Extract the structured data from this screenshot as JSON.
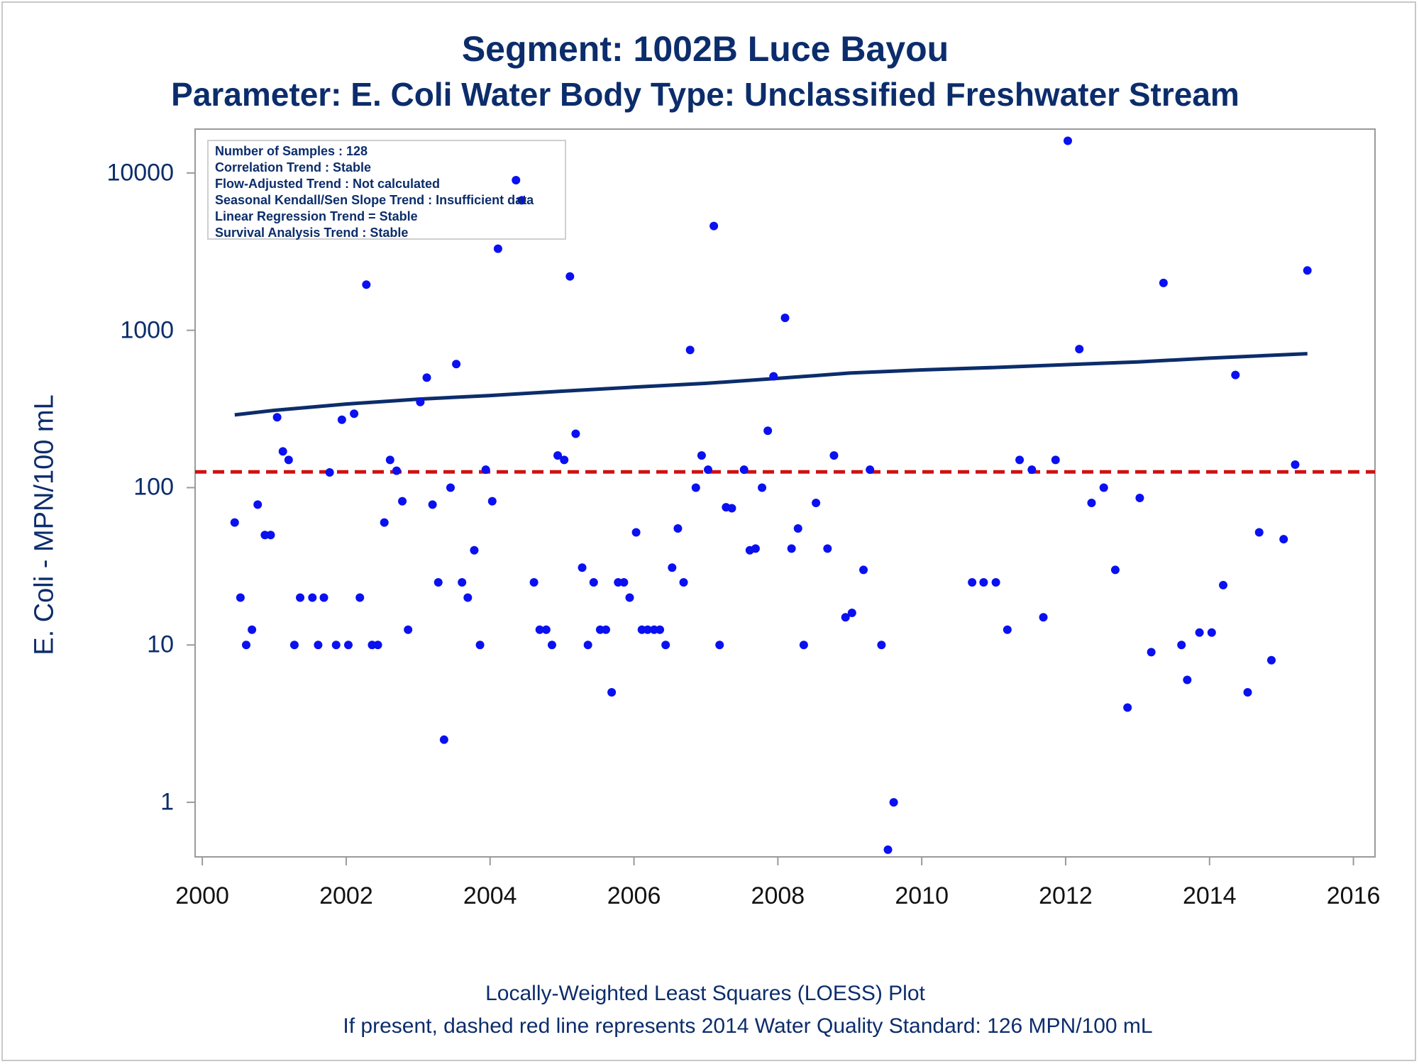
{
  "title": "Segment: 1002B  Luce Bayou",
  "subtitle": "Parameter: E. Coli   Water Body Type: Unclassified Freshwater Stream",
  "footnote1": "Locally-Weighted Least Squares (LOESS) Plot",
  "footnote2": "If present, dashed red line represents 2014 Water Quality Standard: 126 MPN/100 mL",
  "legend_lines": [
    "Number of Samples : 128",
    "Correlation Trend : Stable",
    "Flow-Adjusted Trend : Not calculated",
    "Seasonal Kendall/Sen Slope Trend : Insufficient data",
    "Linear Regression Trend = Stable",
    "Survival Analysis Trend : Stable"
  ],
  "colors": {
    "points": "#0a10f0",
    "loess": "#0c2d6b",
    "standard": "#d01010",
    "text": "#0c2d6b"
  },
  "chart_data": {
    "type": "scatter",
    "ylabel": "E. Coli - MPN/100 mL",
    "yscale": "log",
    "ylim": [
      0.45,
      19000
    ],
    "xlim": [
      1999.9,
      2016.3
    ],
    "yticks": [
      "1",
      "10",
      "100",
      "1000",
      "10000"
    ],
    "xticks": [
      "2000",
      "2002",
      "2004",
      "2006",
      "2008",
      "2010",
      "2012",
      "2014",
      "2016"
    ],
    "standard_line": 126,
    "points": [
      {
        "x": 2000.45,
        "y": 60
      },
      {
        "x": 2000.53,
        "y": 20
      },
      {
        "x": 2000.61,
        "y": 10
      },
      {
        "x": 2000.69,
        "y": 12.5
      },
      {
        "x": 2000.77,
        "y": 78
      },
      {
        "x": 2000.87,
        "y": 50
      },
      {
        "x": 2000.95,
        "y": 50
      },
      {
        "x": 2001.04,
        "y": 280
      },
      {
        "x": 2001.12,
        "y": 170
      },
      {
        "x": 2001.2,
        "y": 150
      },
      {
        "x": 2001.28,
        "y": 10
      },
      {
        "x": 2001.36,
        "y": 20
      },
      {
        "x": 2001.53,
        "y": 20
      },
      {
        "x": 2001.61,
        "y": 10
      },
      {
        "x": 2001.69,
        "y": 20
      },
      {
        "x": 2001.77,
        "y": 125
      },
      {
        "x": 2001.86,
        "y": 10
      },
      {
        "x": 2001.94,
        "y": 270
      },
      {
        "x": 2002.03,
        "y": 10
      },
      {
        "x": 2002.11,
        "y": 295
      },
      {
        "x": 2002.19,
        "y": 20
      },
      {
        "x": 2002.28,
        "y": 1950
      },
      {
        "x": 2002.36,
        "y": 10
      },
      {
        "x": 2002.44,
        "y": 10
      },
      {
        "x": 2002.53,
        "y": 60
      },
      {
        "x": 2002.61,
        "y": 150
      },
      {
        "x": 2002.7,
        "y": 128
      },
      {
        "x": 2002.78,
        "y": 82
      },
      {
        "x": 2002.86,
        "y": 12.5
      },
      {
        "x": 2003.03,
        "y": 350
      },
      {
        "x": 2003.12,
        "y": 500
      },
      {
        "x": 2003.2,
        "y": 78
      },
      {
        "x": 2003.28,
        "y": 25
      },
      {
        "x": 2003.36,
        "y": 2.5
      },
      {
        "x": 2003.45,
        "y": 100
      },
      {
        "x": 2003.53,
        "y": 610
      },
      {
        "x": 2003.61,
        "y": 25
      },
      {
        "x": 2003.69,
        "y": 20
      },
      {
        "x": 2003.78,
        "y": 40
      },
      {
        "x": 2003.86,
        "y": 10
      },
      {
        "x": 2003.94,
        "y": 130
      },
      {
        "x": 2004.03,
        "y": 82
      },
      {
        "x": 2004.11,
        "y": 3300
      },
      {
        "x": 2004.36,
        "y": 9000
      },
      {
        "x": 2004.44,
        "y": 6700
      },
      {
        "x": 2004.61,
        "y": 25
      },
      {
        "x": 2004.69,
        "y": 12.5
      },
      {
        "x": 2004.78,
        "y": 12.5
      },
      {
        "x": 2004.86,
        "y": 10
      },
      {
        "x": 2004.94,
        "y": 160
      },
      {
        "x": 2005.03,
        "y": 150
      },
      {
        "x": 2005.11,
        "y": 2200
      },
      {
        "x": 2005.19,
        "y": 220
      },
      {
        "x": 2005.28,
        "y": 31
      },
      {
        "x": 2005.36,
        "y": 10
      },
      {
        "x": 2005.44,
        "y": 25
      },
      {
        "x": 2005.53,
        "y": 12.5
      },
      {
        "x": 2005.61,
        "y": 12.5
      },
      {
        "x": 2005.69,
        "y": 5
      },
      {
        "x": 2005.78,
        "y": 25
      },
      {
        "x": 2005.86,
        "y": 25
      },
      {
        "x": 2005.94,
        "y": 20
      },
      {
        "x": 2006.03,
        "y": 52
      },
      {
        "x": 2006.11,
        "y": 12.5
      },
      {
        "x": 2006.19,
        "y": 12.5
      },
      {
        "x": 2006.28,
        "y": 12.5
      },
      {
        "x": 2006.36,
        "y": 12.5
      },
      {
        "x": 2006.44,
        "y": 10
      },
      {
        "x": 2006.53,
        "y": 31
      },
      {
        "x": 2006.61,
        "y": 55
      },
      {
        "x": 2006.69,
        "y": 25
      },
      {
        "x": 2006.78,
        "y": 750
      },
      {
        "x": 2006.86,
        "y": 100
      },
      {
        "x": 2006.94,
        "y": 160
      },
      {
        "x": 2007.03,
        "y": 130
      },
      {
        "x": 2007.11,
        "y": 4600
      },
      {
        "x": 2007.19,
        "y": 10
      },
      {
        "x": 2007.28,
        "y": 75
      },
      {
        "x": 2007.36,
        "y": 74
      },
      {
        "x": 2007.53,
        "y": 130
      },
      {
        "x": 2007.61,
        "y": 40
      },
      {
        "x": 2007.69,
        "y": 41
      },
      {
        "x": 2007.78,
        "y": 100
      },
      {
        "x": 2007.86,
        "y": 230
      },
      {
        "x": 2007.94,
        "y": 510
      },
      {
        "x": 2008.1,
        "y": 1200
      },
      {
        "x": 2008.19,
        "y": 41
      },
      {
        "x": 2008.28,
        "y": 55
      },
      {
        "x": 2008.36,
        "y": 10
      },
      {
        "x": 2008.53,
        "y": 80
      },
      {
        "x": 2008.69,
        "y": 41
      },
      {
        "x": 2008.78,
        "y": 160
      },
      {
        "x": 2008.94,
        "y": 15
      },
      {
        "x": 2009.03,
        "y": 16
      },
      {
        "x": 2009.19,
        "y": 30
      },
      {
        "x": 2009.28,
        "y": 130
      },
      {
        "x": 2009.44,
        "y": 10
      },
      {
        "x": 2009.53,
        "y": 0.5
      },
      {
        "x": 2009.61,
        "y": 1
      },
      {
        "x": 2010.7,
        "y": 25
      },
      {
        "x": 2010.86,
        "y": 25
      },
      {
        "x": 2011.03,
        "y": 25
      },
      {
        "x": 2011.19,
        "y": 12.5
      },
      {
        "x": 2011.36,
        "y": 150
      },
      {
        "x": 2011.53,
        "y": 130
      },
      {
        "x": 2011.69,
        "y": 15
      },
      {
        "x": 2011.86,
        "y": 150
      },
      {
        "x": 2012.03,
        "y": 16000
      },
      {
        "x": 2012.19,
        "y": 760
      },
      {
        "x": 2012.36,
        "y": 80
      },
      {
        "x": 2012.53,
        "y": 100
      },
      {
        "x": 2012.69,
        "y": 30
      },
      {
        "x": 2012.86,
        "y": 4
      },
      {
        "x": 2013.03,
        "y": 86
      },
      {
        "x": 2013.19,
        "y": 9
      },
      {
        "x": 2013.36,
        "y": 2000
      },
      {
        "x": 2013.61,
        "y": 10
      },
      {
        "x": 2013.69,
        "y": 6
      },
      {
        "x": 2013.86,
        "y": 12
      },
      {
        "x": 2014.03,
        "y": 12
      },
      {
        "x": 2014.19,
        "y": 24
      },
      {
        "x": 2014.36,
        "y": 520
      },
      {
        "x": 2014.53,
        "y": 5
      },
      {
        "x": 2014.69,
        "y": 52
      },
      {
        "x": 2014.86,
        "y": 8
      },
      {
        "x": 2015.03,
        "y": 47
      },
      {
        "x": 2015.19,
        "y": 140
      },
      {
        "x": 2015.36,
        "y": 2400
      }
    ],
    "loess": [
      {
        "x": 2000.45,
        "y": 290
      },
      {
        "x": 2001.0,
        "y": 310
      },
      {
        "x": 2002.0,
        "y": 340
      },
      {
        "x": 2003.0,
        "y": 365
      },
      {
        "x": 2004.0,
        "y": 385
      },
      {
        "x": 2005.0,
        "y": 410
      },
      {
        "x": 2006.0,
        "y": 435
      },
      {
        "x": 2007.0,
        "y": 460
      },
      {
        "x": 2008.0,
        "y": 495
      },
      {
        "x": 2009.0,
        "y": 535
      },
      {
        "x": 2010.0,
        "y": 560
      },
      {
        "x": 2011.0,
        "y": 580
      },
      {
        "x": 2012.0,
        "y": 605
      },
      {
        "x": 2013.0,
        "y": 630
      },
      {
        "x": 2014.0,
        "y": 665
      },
      {
        "x": 2015.36,
        "y": 710
      }
    ]
  }
}
